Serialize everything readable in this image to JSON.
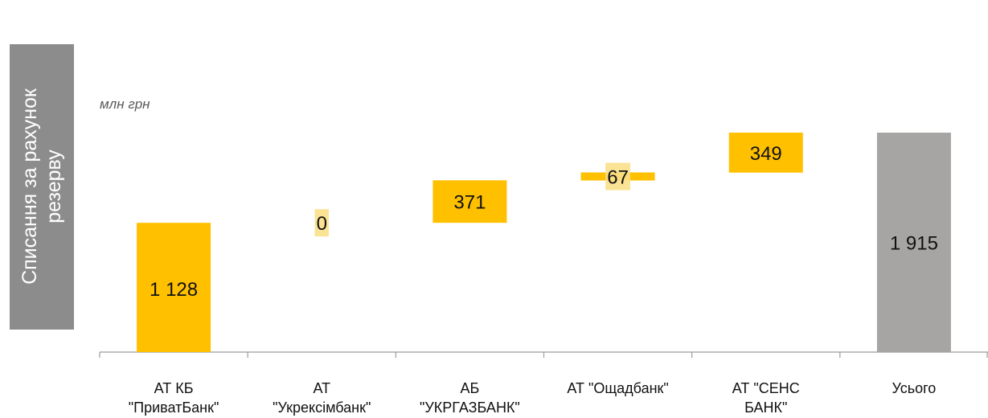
{
  "side_title": {
    "line1": "Списання за рахунок",
    "line2": "резерву"
  },
  "unit_label": "млн грн",
  "colors": {
    "bar": "#ffc000",
    "label_bg": "#fbe08a",
    "total": "#a6a5a4",
    "axis": "#9c9c9c",
    "side_panel": "#8c8c8c"
  },
  "chart_data": {
    "type": "bar",
    "subtype": "waterfall",
    "title": "",
    "xlabel": "",
    "ylabel": "",
    "ylim": [
      0,
      1915
    ],
    "grid": false,
    "legend": "none",
    "categories": [
      [
        "АТ КБ",
        "\"ПриватБанк\""
      ],
      [
        "АТ",
        "\"Укрексімбанк\""
      ],
      [
        "АБ",
        "\"УКРГАЗБАНК\""
      ],
      [
        "АТ \"Ощадбанк\""
      ],
      [
        "АТ \"СЕНС",
        "БАНК\""
      ],
      [
        "Усього"
      ]
    ],
    "values": [
      1128,
      0,
      371,
      67,
      349,
      1915
    ],
    "value_labels": [
      "1 128",
      "0",
      "371",
      "67",
      "349",
      "1 915"
    ],
    "is_total": [
      false,
      false,
      false,
      false,
      false,
      true
    ]
  }
}
